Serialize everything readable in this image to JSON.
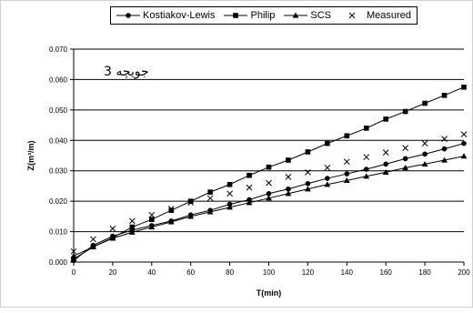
{
  "chart_data": {
    "type": "line",
    "annotation": "جویچه 3",
    "xlabel": "T(min)",
    "ylabel": "Z(m³/m)",
    "xlim": [
      0,
      200
    ],
    "ylim": [
      0,
      0.07
    ],
    "x_ticks": [
      "0",
      "20",
      "40",
      "60",
      "80",
      "100",
      "120",
      "140",
      "160",
      "180",
      "200"
    ],
    "y_ticks": [
      "0.000",
      "0.010",
      "0.020",
      "0.030",
      "0.040",
      "0.050",
      "0.060",
      "0.070"
    ],
    "grid": "horizontal",
    "legend_position": "top",
    "series": [
      {
        "name": "Kostiakov-Lewis",
        "marker": "circle",
        "line_style": "solid",
        "x": [
          0,
          10,
          20,
          30,
          40,
          50,
          60,
          70,
          80,
          90,
          100,
          110,
          120,
          130,
          140,
          150,
          160,
          170,
          180,
          190,
          200
        ],
        "y": [
          0.0005,
          0.0055,
          0.0085,
          0.0105,
          0.012,
          0.0135,
          0.0155,
          0.017,
          0.019,
          0.0205,
          0.0225,
          0.024,
          0.0258,
          0.0275,
          0.029,
          0.0305,
          0.0322,
          0.034,
          0.0355,
          0.0372,
          0.039
        ]
      },
      {
        "name": "Philip",
        "marker": "square",
        "line_style": "solid",
        "x": [
          0,
          10,
          20,
          30,
          40,
          50,
          60,
          70,
          80,
          90,
          100,
          110,
          120,
          130,
          140,
          150,
          160,
          170,
          180,
          190,
          200
        ],
        "y": [
          0.001,
          0.005,
          0.008,
          0.0115,
          0.014,
          0.017,
          0.02,
          0.023,
          0.0255,
          0.0285,
          0.0312,
          0.0335,
          0.0362,
          0.039,
          0.0415,
          0.044,
          0.047,
          0.0495,
          0.0522,
          0.0548,
          0.0575
        ]
      },
      {
        "name": "SCS",
        "marker": "triangle",
        "line_style": "solid",
        "x": [
          0,
          10,
          20,
          30,
          40,
          50,
          60,
          70,
          80,
          90,
          100,
          110,
          120,
          130,
          140,
          150,
          160,
          170,
          180,
          190,
          200
        ],
        "y": [
          0.002,
          0.005,
          0.0078,
          0.0098,
          0.0115,
          0.0132,
          0.015,
          0.0165,
          0.018,
          0.0195,
          0.021,
          0.0225,
          0.024,
          0.0255,
          0.0268,
          0.0282,
          0.0295,
          0.031,
          0.0322,
          0.0335,
          0.0348
        ]
      },
      {
        "name": "Measured",
        "marker": "x",
        "line_style": "none",
        "x": [
          0,
          10,
          20,
          30,
          40,
          50,
          60,
          70,
          80,
          90,
          100,
          110,
          120,
          130,
          140,
          150,
          160,
          170,
          180,
          190,
          200
        ],
        "y": [
          0.0035,
          0.0075,
          0.011,
          0.0135,
          0.0155,
          0.0175,
          0.0195,
          0.021,
          0.0225,
          0.0245,
          0.026,
          0.028,
          0.0295,
          0.031,
          0.033,
          0.0345,
          0.036,
          0.0375,
          0.039,
          0.0405,
          0.042
        ]
      }
    ]
  }
}
